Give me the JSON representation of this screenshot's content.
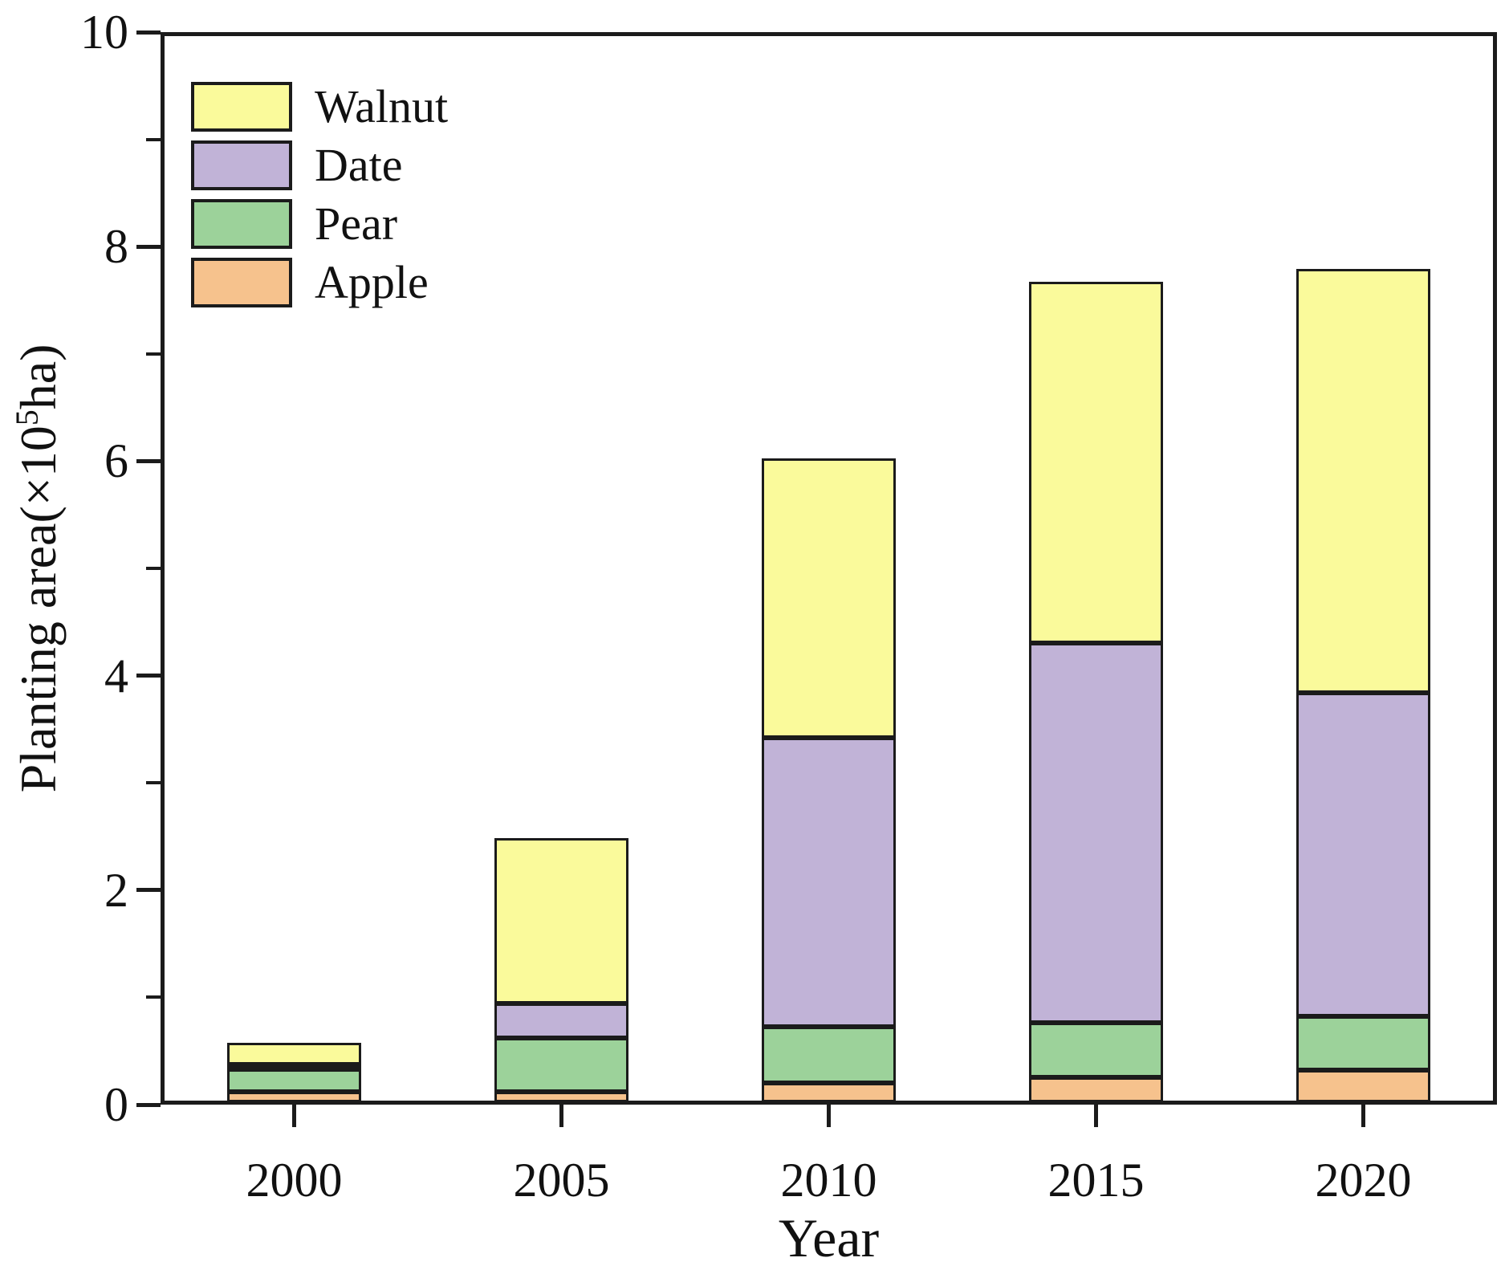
{
  "chart_data": {
    "type": "bar",
    "stacked": true,
    "title": "",
    "xlabel": "Year",
    "ylabel": "Planting area(×10⁵ha)",
    "ylabel_parts": {
      "prefix": "Planting area(×10",
      "superscript": "5",
      "suffix": "ha)"
    },
    "categories": [
      "2000",
      "2005",
      "2010",
      "2015",
      "2020"
    ],
    "series": [
      {
        "name": "Apple",
        "color": "#F6C28D",
        "values": [
          0.1,
          0.1,
          0.18,
          0.23,
          0.3
        ]
      },
      {
        "name": "Pear",
        "color": "#9CD29A",
        "values": [
          0.21,
          0.5,
          0.52,
          0.51,
          0.5
        ]
      },
      {
        "name": "Date",
        "color": "#C1B3D7",
        "values": [
          0.02,
          0.32,
          2.7,
          3.54,
          3.02
        ]
      },
      {
        "name": "Walnut",
        "color": "#FAFA9B",
        "values": [
          0.2,
          1.54,
          2.6,
          3.37,
          3.95
        ]
      }
    ],
    "stack_totals": [
      0.53,
      2.46,
      6.0,
      7.65,
      7.77
    ],
    "legend_order": [
      "Walnut",
      "Date",
      "Pear",
      "Apple"
    ],
    "legend_position": "upper-left-inside",
    "ylim": [
      0,
      10
    ],
    "y_major_ticks": [
      0,
      2,
      4,
      6,
      8,
      10
    ],
    "y_minor_ticks": [
      1,
      3,
      5,
      7,
      9
    ],
    "grid": false,
    "frame": "full-box",
    "axis_color": "#1b1b1b",
    "background_color": "#ffffff"
  }
}
